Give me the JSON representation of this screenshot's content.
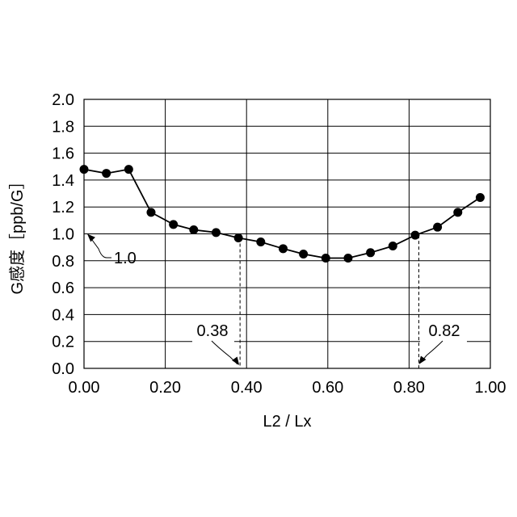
{
  "chart_data": {
    "type": "line",
    "xlabel": "L2 / Lx",
    "ylabel": "G感度［ppb/G］",
    "xlim": [
      0.0,
      1.0
    ],
    "ylim": [
      0.0,
      2.0
    ],
    "x_ticks": [
      "0.00",
      "0.20",
      "0.40",
      "0.60",
      "0.80",
      "1.00"
    ],
    "y_ticks": [
      "0.0",
      "0.2",
      "0.4",
      "0.6",
      "0.8",
      "1.0",
      "1.2",
      "1.4",
      "1.6",
      "1.8",
      "2.0"
    ],
    "grid": true,
    "series": [
      {
        "x": [
          0.0,
          0.055,
          0.11,
          0.165,
          0.22,
          0.27,
          0.325,
          0.38,
          0.435,
          0.49,
          0.54,
          0.595,
          0.65,
          0.705,
          0.76,
          0.815,
          0.87,
          0.92,
          0.975
        ],
        "y": [
          1.48,
          1.45,
          1.48,
          1.16,
          1.07,
          1.03,
          1.01,
          0.97,
          0.94,
          0.89,
          0.85,
          0.82,
          0.82,
          0.86,
          0.91,
          0.99,
          1.05,
          1.16,
          1.27
        ]
      }
    ],
    "annotations": [
      {
        "text": "1.0",
        "x": 0.0,
        "y": 1.0
      },
      {
        "text": "0.38",
        "x": 0.38,
        "y": 0.0
      },
      {
        "text": "0.82",
        "x": 0.82,
        "y": 0.0
      }
    ]
  }
}
